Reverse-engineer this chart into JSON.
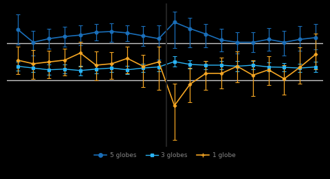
{
  "x": [
    1,
    2,
    3,
    4,
    5,
    6,
    7,
    8,
    9,
    10,
    11,
    12,
    13,
    14,
    15,
    16,
    17,
    18,
    19,
    20
  ],
  "vline_x": 10.5,
  "series": [
    {
      "name": "dark_blue",
      "color": "#1a6fba",
      "marker": "o",
      "markersize": 3.5,
      "linewidth": 1.2,
      "y": [
        0.48,
        0.12,
        0.22,
        0.28,
        0.32,
        0.4,
        0.42,
        0.38,
        0.3,
        0.22,
        0.68,
        0.5,
        0.35,
        0.18,
        0.12,
        0.12,
        0.2,
        0.12,
        0.2,
        0.25
      ],
      "yerr_lo": [
        0.42,
        0.38,
        0.28,
        0.28,
        0.28,
        0.23,
        0.28,
        0.22,
        0.28,
        0.58,
        0.72,
        0.52,
        0.38,
        0.32,
        0.32,
        0.28,
        0.32,
        0.38,
        0.32,
        0.32
      ],
      "yerr_hi": [
        0.42,
        0.32,
        0.28,
        0.28,
        0.28,
        0.22,
        0.22,
        0.22,
        0.28,
        0.38,
        0.3,
        0.3,
        0.28,
        0.32,
        0.28,
        0.28,
        0.32,
        0.32,
        0.38,
        0.38
      ]
    },
    {
      "name": "light_blue",
      "color": "#2ab4f5",
      "marker": "s",
      "markersize": 3.0,
      "linewidth": 1.0,
      "y": [
        -0.55,
        -0.6,
        -0.65,
        -0.63,
        -0.67,
        -0.63,
        -0.6,
        -0.65,
        -0.6,
        -0.57,
        -0.42,
        -0.5,
        -0.52,
        -0.52,
        -0.55,
        -0.52,
        -0.57,
        -0.58,
        -0.6,
        -0.57
      ],
      "yerr_lo": [
        0.12,
        0.12,
        0.14,
        0.12,
        0.14,
        0.12,
        0.12,
        0.12,
        0.12,
        0.12,
        0.14,
        0.12,
        0.12,
        0.12,
        0.14,
        0.12,
        0.12,
        0.12,
        0.12,
        0.14
      ],
      "yerr_hi": [
        0.12,
        0.12,
        0.14,
        0.12,
        0.14,
        0.12,
        0.12,
        0.12,
        0.12,
        0.12,
        0.14,
        0.12,
        0.12,
        0.12,
        0.14,
        0.12,
        0.12,
        0.12,
        0.12,
        0.14
      ]
    },
    {
      "name": "orange",
      "color": "#f5a623",
      "marker": "D",
      "markersize": 2.5,
      "linewidth": 1.2,
      "y": [
        -0.38,
        -0.48,
        -0.43,
        -0.38,
        -0.18,
        -0.52,
        -0.48,
        -0.33,
        -0.55,
        -0.43,
        -1.65,
        -1.05,
        -0.75,
        -0.75,
        -0.55,
        -0.8,
        -0.65,
        -0.9,
        -0.58,
        -0.22
      ],
      "yerr_lo": [
        0.38,
        0.42,
        0.45,
        0.42,
        0.38,
        0.42,
        0.42,
        0.42,
        0.58,
        0.78,
        0.95,
        0.5,
        0.45,
        0.42,
        0.45,
        0.58,
        0.42,
        0.45,
        0.45,
        0.42
      ],
      "yerr_hi": [
        0.38,
        0.38,
        0.32,
        0.32,
        0.32,
        0.38,
        0.32,
        0.32,
        0.32,
        0.42,
        0.62,
        0.45,
        0.35,
        0.45,
        0.42,
        0.42,
        0.38,
        0.38,
        0.55,
        0.58
      ]
    }
  ],
  "ylim": [
    -2.8,
    1.2
  ],
  "hlines_y": [
    0.1,
    -0.95
  ],
  "hline_color": "#c8c8c8",
  "hline_linewidth": 1.0,
  "background_color": "#000000",
  "vline_color": "#000000",
  "vline_linewidth": 1.5,
  "legend_labels": [
    "5 globes",
    "3 globes",
    "1 globe"
  ],
  "legend_fontsize": 6.5,
  "legend_text_color": "#888888"
}
